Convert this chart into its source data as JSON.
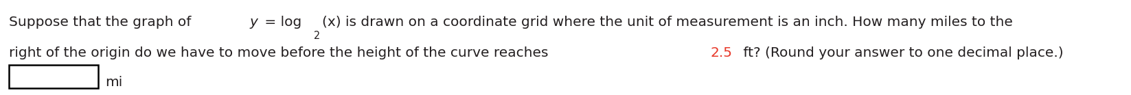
{
  "text1_a": "Suppose that the graph of ",
  "text1_b": "y",
  "text1_c": " = log",
  "text1_sub": "2",
  "text1_d": "(x) is drawn on a coordinate grid where the unit of measurement is an inch. How many miles to the",
  "text2_a": "right of the origin do we have to move before the height of the curve reaches ",
  "text2_highlight": "2.5",
  "text2_b": " ft? (Round your answer to one decimal place.)",
  "text3": "mi",
  "text_color": "#231f20",
  "highlight_color": "#e8392a",
  "bg_color": "#ffffff",
  "font_size": 14.5,
  "fig_width": 16.47,
  "fig_height": 1.39,
  "dpi": 100
}
